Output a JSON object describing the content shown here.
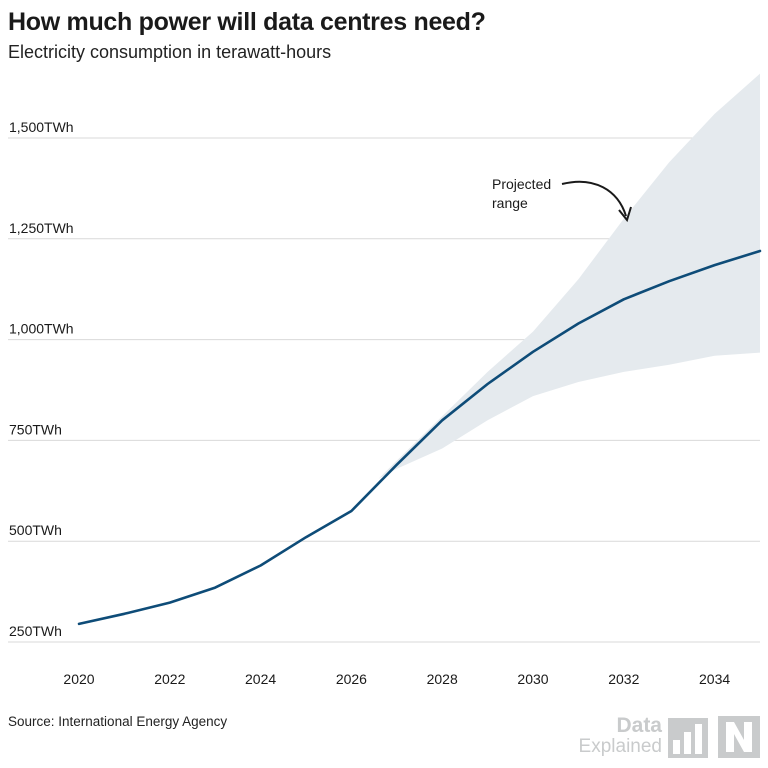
{
  "chart_data": {
    "type": "line",
    "title": "How much power will data centres need?",
    "subtitle": "Electricity consumption in terawatt-hours",
    "x_ticks": [
      "2020",
      "2022",
      "2024",
      "2026",
      "2028",
      "2030",
      "2032",
      "2034"
    ],
    "y_ticks": [
      "250TWh",
      "500TWh",
      "750TWh",
      "1,000TWh",
      "1,250TWh",
      "1,500TWh"
    ],
    "xlim": [
      2020,
      2035
    ],
    "ylim": [
      230,
      1630
    ],
    "grid": true,
    "series": [
      {
        "x": [
          2020,
          2021,
          2022,
          2023,
          2024,
          2025,
          2026,
          2027,
          2028,
          2029,
          2030,
          2031,
          2032,
          2033,
          2034,
          2035
        ],
        "values": [
          275,
          300,
          328,
          365,
          420,
          490,
          555,
          670,
          780,
          870,
          950,
          1020,
          1080,
          1125,
          1165,
          1200
        ]
      }
    ],
    "range": {
      "x": [
        2026.6,
        2027,
        2028,
        2029,
        2030,
        2031,
        2032,
        2033,
        2034,
        2035
      ],
      "upper": [
        635,
        680,
        790,
        900,
        1000,
        1130,
        1280,
        1420,
        1540,
        1640
      ],
      "lower": [
        635,
        660,
        710,
        780,
        840,
        875,
        900,
        918,
        940,
        948
      ]
    },
    "annotation": {
      "line1": "Projected",
      "line2": "range"
    },
    "colors": {
      "line": "#0e4c78",
      "range": "#e5eaee",
      "grid": "#d9d9d9",
      "text": "#1a1a1a"
    }
  },
  "footer": {
    "source": "Source: International Energy Agency",
    "brand_word1": "Data",
    "brand_word2": "Explained"
  }
}
